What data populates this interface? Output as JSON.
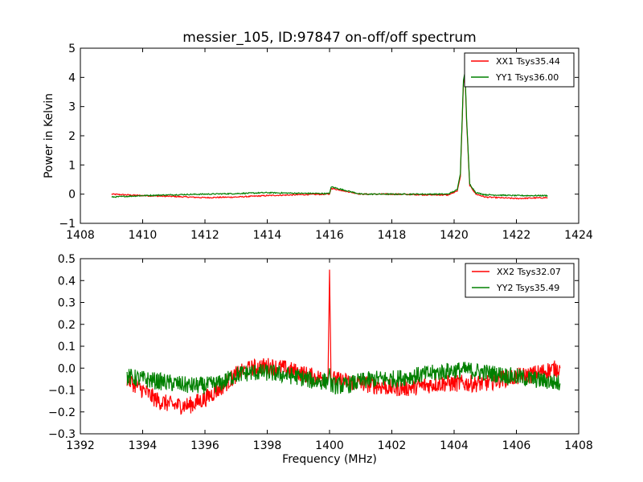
{
  "chart_data": [
    {
      "type": "line",
      "title": "messier_105, ID:97847 on-off/off spectrum",
      "xlabel": "",
      "ylabel": "Power in Kelvin",
      "xlim": [
        1408,
        1424
      ],
      "ylim": [
        -1,
        5
      ],
      "xticks": [
        1408,
        1410,
        1412,
        1414,
        1416,
        1418,
        1420,
        1422,
        1424
      ],
      "yticks": [
        -1,
        0,
        1,
        2,
        3,
        4,
        5
      ],
      "legend_position": "top-right",
      "series": [
        {
          "name": "XX1 Tsys35.44",
          "color": "#ff0000",
          "x": [
            1409.0,
            1410.0,
            1411.0,
            1412.0,
            1413.0,
            1414.0,
            1415.0,
            1416.0,
            1416.05,
            1417.0,
            1418.0,
            1419.0,
            1419.8,
            1420.1,
            1420.2,
            1420.3,
            1420.35,
            1420.4,
            1420.5,
            1420.7,
            1421.0,
            1422.0,
            1423.0
          ],
          "y": [
            0.0,
            -0.05,
            -0.08,
            -0.12,
            -0.1,
            -0.05,
            -0.02,
            0.0,
            0.2,
            0.0,
            0.0,
            -0.02,
            -0.03,
            0.1,
            0.6,
            3.8,
            4.1,
            2.5,
            0.3,
            0.0,
            -0.1,
            -0.15,
            -0.12
          ]
        },
        {
          "name": "YY1 Tsys36.00",
          "color": "#008000",
          "x": [
            1409.0,
            1410.0,
            1411.0,
            1412.0,
            1413.0,
            1414.0,
            1415.0,
            1416.0,
            1416.05,
            1417.0,
            1418.0,
            1419.0,
            1419.8,
            1420.1,
            1420.2,
            1420.3,
            1420.35,
            1420.4,
            1420.5,
            1420.7,
            1421.0,
            1422.0,
            1423.0
          ],
          "y": [
            -0.1,
            -0.05,
            -0.02,
            0.0,
            0.02,
            0.05,
            0.03,
            0.02,
            0.25,
            0.0,
            0.0,
            0.0,
            0.0,
            0.15,
            0.7,
            3.9,
            4.2,
            2.6,
            0.35,
            0.05,
            -0.02,
            -0.05,
            -0.05
          ]
        }
      ]
    },
    {
      "type": "line",
      "title": "",
      "xlabel": "Frequency (MHz)",
      "ylabel": "",
      "xlim": [
        1392,
        1408
      ],
      "ylim": [
        -0.3,
        0.5
      ],
      "xticks": [
        1392,
        1394,
        1396,
        1398,
        1400,
        1402,
        1404,
        1406,
        1408
      ],
      "yticks": [
        -0.3,
        -0.2,
        -0.1,
        0.0,
        0.1,
        0.2,
        0.3,
        0.4,
        0.5
      ],
      "legend_position": "top-right",
      "series": [
        {
          "name": "XX2 Tsys32.07",
          "color": "#ff0000",
          "x": [
            1393.5,
            1394.0,
            1394.5,
            1395.0,
            1395.5,
            1396.0,
            1396.5,
            1397.0,
            1397.5,
            1398.0,
            1398.5,
            1399.0,
            1399.5,
            1399.95,
            1400.0,
            1400.05,
            1400.5,
            1401.0,
            1401.5,
            1402.0,
            1402.5,
            1403.0,
            1403.5,
            1404.0,
            1404.5,
            1405.0,
            1405.5,
            1406.0,
            1406.5,
            1407.0,
            1407.4
          ],
          "y": [
            -0.05,
            -0.1,
            -0.15,
            -0.17,
            -0.17,
            -0.14,
            -0.09,
            -0.03,
            0.0,
            0.01,
            0.0,
            -0.02,
            -0.04,
            -0.05,
            0.45,
            -0.05,
            -0.06,
            -0.07,
            -0.08,
            -0.09,
            -0.09,
            -0.08,
            -0.07,
            -0.07,
            -0.07,
            -0.07,
            -0.05,
            -0.04,
            -0.03,
            -0.01,
            0.0
          ]
        },
        {
          "name": "YY2 Tsys35.49",
          "color": "#008000",
          "x": [
            1393.5,
            1394.0,
            1394.5,
            1395.0,
            1395.5,
            1396.0,
            1396.5,
            1397.0,
            1397.5,
            1398.0,
            1398.5,
            1399.0,
            1399.5,
            1399.95,
            1400.0,
            1400.05,
            1400.5,
            1401.0,
            1401.5,
            1402.0,
            1402.5,
            1403.0,
            1403.5,
            1404.0,
            1404.5,
            1405.0,
            1405.5,
            1406.0,
            1406.5,
            1407.0,
            1407.4
          ],
          "y": [
            -0.04,
            -0.05,
            -0.06,
            -0.07,
            -0.08,
            -0.08,
            -0.07,
            -0.03,
            -0.02,
            -0.02,
            -0.03,
            -0.04,
            -0.06,
            -0.06,
            0.0,
            -0.08,
            -0.08,
            -0.06,
            -0.05,
            -0.05,
            -0.04,
            -0.03,
            -0.02,
            -0.01,
            -0.01,
            -0.02,
            -0.03,
            -0.04,
            -0.05,
            -0.06,
            -0.07
          ]
        }
      ]
    }
  ]
}
